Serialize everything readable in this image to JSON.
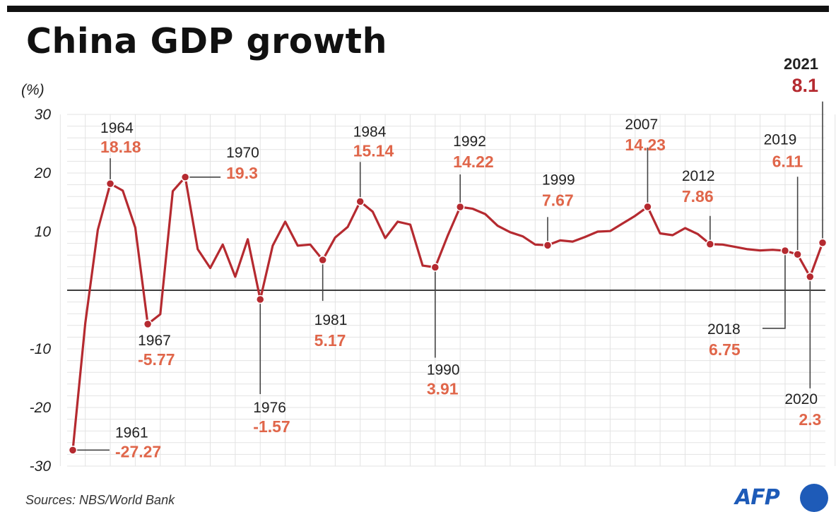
{
  "title": "China GDP growth",
  "unit_label": "(%)",
  "source": "Sources: NBS/World Bank",
  "logo": {
    "text": "AFP",
    "color": "#1e5bb8"
  },
  "colors": {
    "line": "#b52a30",
    "value": "#e0664a",
    "highlight": "#b52a30"
  },
  "chart_data": {
    "type": "line",
    "title": "China GDP growth",
    "ylabel": "(%)",
    "xlabel": "",
    "ylim": [
      -30,
      30
    ],
    "xlim": [
      1961,
      2021
    ],
    "yticks": [
      "30",
      "20",
      "10",
      "-10",
      "-20",
      "-30"
    ],
    "grid": true,
    "legend": "none",
    "series": [
      {
        "x": [
          1961,
          1962,
          1963,
          1964,
          1965,
          1966,
          1967,
          1968,
          1969,
          1970,
          1971,
          1972,
          1973,
          1974,
          1975,
          1976,
          1977,
          1978,
          1979,
          1980,
          1981,
          1982,
          1983,
          1984,
          1985,
          1986,
          1987,
          1988,
          1989,
          1990,
          1991,
          1992,
          1993,
          1994,
          1995,
          1996,
          1997,
          1998,
          1999,
          2000,
          2001,
          2002,
          2003,
          2004,
          2005,
          2006,
          2007,
          2008,
          2009,
          2010,
          2011,
          2012,
          2013,
          2014,
          2015,
          2016,
          2017,
          2018,
          2019,
          2020,
          2021
        ],
        "y": [
          -27.27,
          -5.6,
          10.3,
          18.18,
          17.0,
          10.7,
          -5.77,
          -4.1,
          16.9,
          19.3,
          7.0,
          3.8,
          7.8,
          2.3,
          8.7,
          -1.57,
          7.6,
          11.7,
          7.6,
          7.8,
          5.17,
          9.0,
          10.8,
          15.14,
          13.4,
          8.9,
          11.7,
          11.2,
          4.2,
          3.91,
          9.3,
          14.22,
          13.9,
          13.0,
          11.0,
          9.9,
          9.2,
          7.8,
          7.67,
          8.5,
          8.3,
          9.1,
          10.0,
          10.1,
          11.4,
          12.7,
          14.23,
          9.7,
          9.4,
          10.6,
          9.6,
          7.86,
          7.8,
          7.4,
          7.0,
          6.8,
          6.9,
          6.75,
          6.11,
          2.3,
          8.1
        ]
      }
    ],
    "annotations": [
      {
        "year": "1961",
        "value": "-27.27"
      },
      {
        "year": "1964",
        "value": "18.18"
      },
      {
        "year": "1967",
        "value": "-5.77"
      },
      {
        "year": "1970",
        "value": "19.3"
      },
      {
        "year": "1976",
        "value": "-1.57"
      },
      {
        "year": "1981",
        "value": "5.17"
      },
      {
        "year": "1984",
        "value": "15.14"
      },
      {
        "year": "1990",
        "value": "3.91"
      },
      {
        "year": "1992",
        "value": "14.22"
      },
      {
        "year": "1999",
        "value": "7.67"
      },
      {
        "year": "2007",
        "value": "14.23"
      },
      {
        "year": "2012",
        "value": "7.86"
      },
      {
        "year": "2018",
        "value": "6.75"
      },
      {
        "year": "2019",
        "value": "6.11"
      },
      {
        "year": "2020",
        "value": "2.3"
      },
      {
        "year": "2021",
        "value": "8.1"
      }
    ]
  }
}
